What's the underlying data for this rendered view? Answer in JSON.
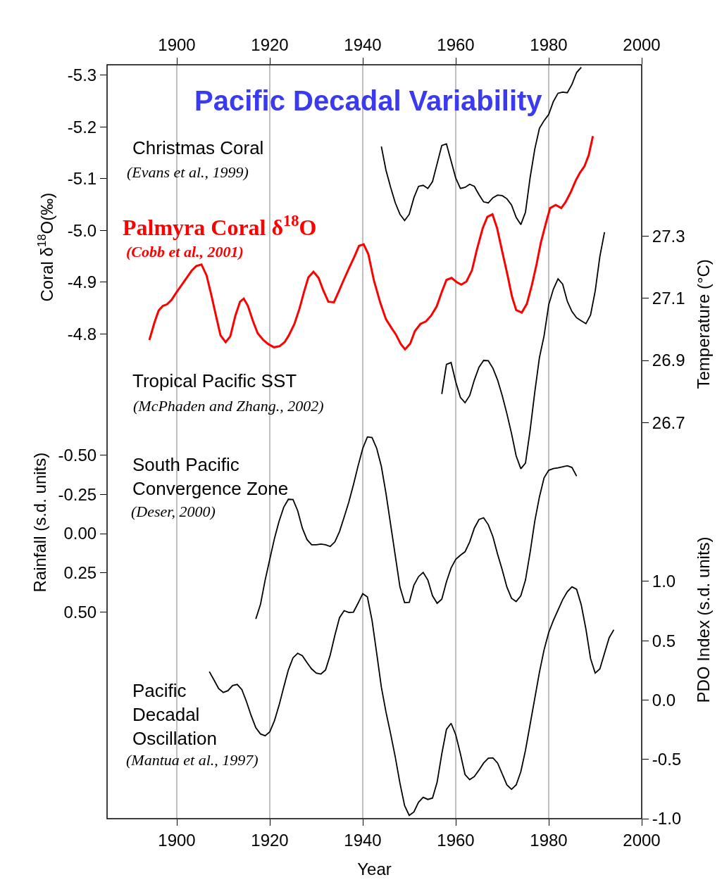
{
  "chart_data": [
    {
      "type": "line",
      "title": "Pacific Decadal Variability",
      "ylabel": "Coral δ$^{18}$O(‰)",
      "y2label": "Temperature (°C)",
      "xlim": [
        1885,
        2000
      ],
      "xticks": [
        1900,
        1920,
        1940,
        1960,
        1980,
        2000
      ],
      "ylim": [
        -4.52,
        -5.32
      ],
      "yticks": [
        -5.3,
        -5.2,
        -5.1,
        {
          "value": -5.0,
          "label": "-5.0"
        },
        -4.9,
        -4.8
      ],
      "y2lim": [
        26.52,
        27.85
      ],
      "y2ticks": [
        26.7,
        26.9,
        27.1,
        27.3
      ],
      "grid": "x",
      "marker": "none",
      "line_style": "solid",
      "annotations": [
        "Christmas Coral",
        "(Evans et al., 1999)",
        "(Cobb et al., 2001)",
        "Tropical Pacific SST",
        "(McPhaden and Zhang., 2002)"
      ],
      "series": [
        {
          "color": "#000000",
          "x": [
            1944,
            1945,
            1946,
            1947,
            1948,
            1949,
            1950,
            1951,
            1952,
            1953,
            1954,
            1955,
            1956,
            1957,
            1958,
            1959,
            1960,
            1961,
            1962,
            1963,
            1964,
            1965,
            1966,
            1967,
            1968,
            1969,
            1970,
            1971,
            1972,
            1973,
            1974,
            1975,
            1976,
            1977,
            1978,
            1979,
            1980,
            1981,
            1982,
            1983,
            1984,
            1985,
            1986,
            1987
          ],
          "values": [
            -5.162,
            -5.116,
            -5.083,
            -5.053,
            -5.031,
            -5.019,
            -5.031,
            -5.063,
            -5.085,
            -5.087,
            -5.081,
            -5.094,
            -5.129,
            -5.164,
            -5.167,
            -5.134,
            -5.101,
            -5.081,
            -5.083,
            -5.089,
            -5.085,
            -5.069,
            -5.055,
            -5.053,
            -5.063,
            -5.068,
            -5.067,
            -5.061,
            -5.049,
            -5.025,
            -5.011,
            -5.035,
            -5.102,
            -5.157,
            -5.197,
            -5.212,
            -5.224,
            -5.249,
            -5.265,
            -5.267,
            -5.266,
            -5.282,
            -5.305,
            -5.315
          ]
        },
        {
          "name": "Palmyra Coral δ$^{18}$O",
          "color": "#ff0000",
          "x": [
            1894.1,
            1895.2,
            1896.1,
            1897.0,
            1897.9,
            1898.9,
            1900.0,
            1901.1,
            1902.1,
            1903.2,
            1904.2,
            1905.3,
            1906.4,
            1907.4,
            1908.5,
            1909.4,
            1910.5,
            1911.5,
            1912.6,
            1913.6,
            1914.4,
            1915.3,
            1916.4,
            1917.4,
            1918.6,
            1919.7,
            1920.9,
            1922.1,
            1923.2,
            1924.1,
            1925.3,
            1926.4,
            1927.4,
            1928.3,
            1929.4,
            1930.5,
            1931.5,
            1932.6,
            1933.8,
            1934.8,
            1935.9,
            1937.1,
            1938.2,
            1939.2,
            1940.2,
            1941.2,
            1942.4,
            1943.8,
            1945.0,
            1946.2,
            1947.1,
            1948.2,
            1949.1,
            1950.2,
            1951.2,
            1952.4,
            1953.6,
            1954.7,
            1955.9,
            1957.0,
            1958.0,
            1959.1,
            1960.2,
            1961.2,
            1962.3,
            1963.5,
            1964.5,
            1965.8,
            1966.8,
            1967.9,
            1968.9,
            1970.0,
            1971.1,
            1972.1,
            1973.0,
            1974.2,
            1975.3,
            1976.4,
            1977.4,
            1978.3,
            1979.4,
            1980.3,
            1981.5,
            1982.7,
            1983.6,
            1984.7,
            1985.8,
            1986.7,
            1987.7,
            1988.6,
            1989.5
          ],
          "values": [
            -4.788,
            -4.822,
            -4.845,
            -4.854,
            -4.857,
            -4.866,
            -4.881,
            -4.895,
            -4.908,
            -4.922,
            -4.931,
            -4.934,
            -4.913,
            -4.876,
            -4.832,
            -4.797,
            -4.784,
            -4.795,
            -4.835,
            -4.862,
            -4.868,
            -4.854,
            -4.824,
            -4.801,
            -4.788,
            -4.78,
            -4.774,
            -4.776,
            -4.784,
            -4.797,
            -4.819,
            -4.849,
            -4.882,
            -4.909,
            -4.92,
            -4.908,
            -4.884,
            -4.862,
            -4.861,
            -4.881,
            -4.904,
            -4.928,
            -4.949,
            -4.97,
            -4.973,
            -4.954,
            -4.903,
            -4.859,
            -4.828,
            -4.811,
            -4.799,
            -4.78,
            -4.77,
            -4.781,
            -4.805,
            -4.819,
            -4.824,
            -4.835,
            -4.853,
            -4.881,
            -4.904,
            -4.908,
            -4.9,
            -4.895,
            -4.901,
            -4.923,
            -4.961,
            -5.004,
            -5.026,
            -5.031,
            -5.004,
            -4.959,
            -4.915,
            -4.872,
            -4.846,
            -4.841,
            -4.858,
            -4.895,
            -4.935,
            -4.976,
            -5.014,
            -5.043,
            -5.049,
            -5.043,
            -5.054,
            -5.073,
            -5.096,
            -5.111,
            -5.124,
            -5.145,
            -5.182
          ]
        },
        {
          "color": "#000000",
          "axis": "y2",
          "x": [
            1957,
            1958,
            1959,
            1960,
            1961,
            1962,
            1963,
            1964,
            1965,
            1966,
            1967,
            1968,
            1969,
            1970,
            1971,
            1972,
            1973,
            1974,
            1975,
            1976,
            1977,
            1978,
            1979,
            1980,
            1981,
            1982,
            1983,
            1984,
            1985,
            1986,
            1987,
            1988,
            1989,
            1990,
            1991,
            1992
          ],
          "values": [
            26.792,
            26.887,
            26.893,
            26.831,
            26.781,
            26.764,
            26.787,
            26.837,
            26.878,
            26.9,
            26.899,
            26.875,
            26.837,
            26.787,
            26.729,
            26.665,
            26.593,
            26.552,
            26.57,
            26.676,
            26.798,
            26.909,
            26.979,
            27.079,
            27.129,
            27.162,
            27.145,
            27.09,
            27.057,
            27.037,
            27.027,
            27.018,
            27.046,
            27.123,
            27.234,
            27.312
          ]
        }
      ]
    },
    {
      "type": "line",
      "xlabel": "Year",
      "ylabel": "Rainfall (s.d. units)",
      "y2label": "PDO Index (s.d. units)",
      "xlim": [
        1885,
        2000
      ],
      "xticks": [
        1900,
        1920,
        1940,
        1960,
        1980,
        2000
      ],
      "ylim": [
        1.82,
        -0.71
      ],
      "yticks": [
        {
          "value": -0.5,
          "label": "-0.50"
        },
        -0.25,
        {
          "value": 0,
          "label": "0.00"
        },
        0.25,
        {
          "value": 0.5,
          "label": "0.50"
        }
      ],
      "y2lim": [
        -1.0,
        2.34
      ],
      "y2ticks": [
        {
          "value": 1,
          "label": "1.0"
        },
        0.5,
        {
          "value": 0,
          "label": "0.0"
        },
        -0.5,
        {
          "value": -1,
          "label": "-1.0"
        }
      ],
      "grid": "x",
      "marker": "none",
      "line_style": "solid",
      "annotations": [
        "(Deser, 2000)",
        "(Mantua et al., 1997)"
      ],
      "series": [
        {
          "name": "South Pacific Convergence Zone",
          "color": "#000000",
          "x": [
            1917,
            1918,
            1919,
            1920,
            1921,
            1922,
            1923,
            1924,
            1925,
            1926,
            1927,
            1928,
            1929,
            1930,
            1931,
            1932,
            1933,
            1934,
            1935,
            1936,
            1937,
            1938,
            1939,
            1940,
            1941,
            1942,
            1943,
            1944,
            1945,
            1946,
            1947,
            1948,
            1949,
            1950,
            1951,
            1952,
            1953,
            1954,
            1955,
            1956,
            1957,
            1958,
            1959,
            1960,
            1961,
            1962,
            1963,
            1964,
            1965,
            1966,
            1967,
            1968,
            1969,
            1970,
            1971,
            1972,
            1973,
            1974,
            1975,
            1976,
            1977,
            1978,
            1979,
            1980,
            1981,
            1982,
            1983,
            1984,
            1985,
            1986
          ],
          "values": [
            0.545,
            0.452,
            0.297,
            0.164,
            0.032,
            -0.079,
            -0.168,
            -0.219,
            -0.217,
            -0.146,
            -0.035,
            0.038,
            0.071,
            0.071,
            0.067,
            0.071,
            0.082,
            0.053,
            -0.013,
            -0.106,
            -0.201,
            -0.312,
            -0.433,
            -0.544,
            -0.617,
            -0.613,
            -0.544,
            -0.429,
            -0.256,
            -0.057,
            0.142,
            0.341,
            0.441,
            0.439,
            0.33,
            0.275,
            0.248,
            0.297,
            0.397,
            0.445,
            0.419,
            0.308,
            0.22,
            0.164,
            0.138,
            0.116,
            0.053,
            -0.035,
            -0.09,
            -0.101,
            -0.057,
            0.02,
            0.131,
            0.231,
            0.341,
            0.413,
            0.434,
            0.397,
            0.297,
            0.12,
            -0.079,
            -0.234,
            -0.356,
            -0.404,
            -0.415,
            -0.42,
            -0.426,
            -0.433,
            -0.422,
            -0.367
          ]
        },
        {
          "name": "Pacific Decadal Oscillation",
          "color": "#000000",
          "axis": "y2",
          "x": [
            1907,
            1908,
            1909,
            1910,
            1911,
            1912,
            1913,
            1914,
            1915,
            1916,
            1917,
            1918,
            1919,
            1920,
            1921,
            1922,
            1923,
            1924,
            1925,
            1926,
            1927,
            1928,
            1929,
            1930,
            1931,
            1932,
            1933,
            1934,
            1935,
            1936,
            1937,
            1938,
            1939,
            1940,
            1941,
            1942,
            1943,
            1944,
            1945,
            1946,
            1947,
            1948,
            1949,
            1950,
            1951,
            1952,
            1953,
            1954,
            1955,
            1956,
            1957,
            1958,
            1959,
            1960,
            1961,
            1962,
            1963,
            1964,
            1965,
            1966,
            1967,
            1968,
            1969,
            1970,
            1971,
            1972,
            1973,
            1974,
            1975,
            1976,
            1977,
            1978,
            1979,
            1980,
            1981,
            1982,
            1983,
            1984,
            1985,
            1986,
            1987,
            1988,
            1989,
            1990,
            1991,
            1992,
            1993,
            1994
          ],
          "values": [
            0.239,
            0.169,
            0.096,
            0.064,
            0.079,
            0.122,
            0.131,
            0.087,
            -0.015,
            -0.132,
            -0.234,
            -0.286,
            -0.301,
            -0.269,
            -0.175,
            -0.044,
            0.108,
            0.254,
            0.356,
            0.394,
            0.373,
            0.315,
            0.262,
            0.227,
            0.219,
            0.254,
            0.379,
            0.545,
            0.694,
            0.753,
            0.738,
            0.741,
            0.817,
            0.896,
            0.869,
            0.671,
            0.394,
            0.108,
            -0.102,
            -0.286,
            -0.482,
            -0.701,
            -0.89,
            -0.972,
            -0.943,
            -0.861,
            -0.82,
            -0.838,
            -0.826,
            -0.692,
            -0.453,
            -0.248,
            -0.196,
            -0.292,
            -0.453,
            -0.628,
            -0.671,
            -0.645,
            -0.59,
            -0.531,
            -0.491,
            -0.488,
            -0.531,
            -0.622,
            -0.715,
            -0.753,
            -0.715,
            -0.604,
            -0.424,
            -0.205,
            0.014,
            0.233,
            0.423,
            0.569,
            0.671,
            0.758,
            0.846,
            0.913,
            0.954,
            0.933,
            0.802,
            0.598,
            0.35,
            0.227,
            0.262,
            0.394,
            0.525,
            0.592
          ]
        }
      ]
    }
  ]
}
